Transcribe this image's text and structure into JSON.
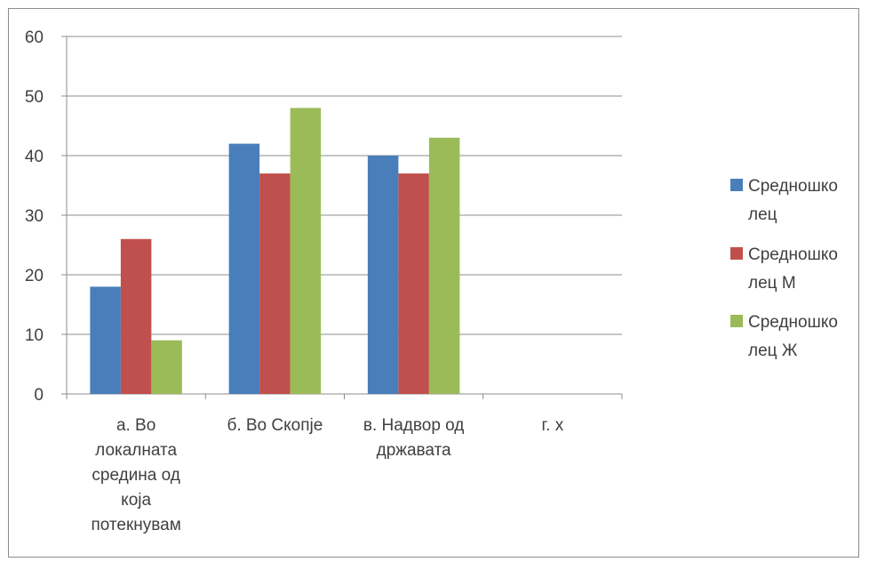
{
  "chart_data": {
    "type": "bar",
    "title": "",
    "xlabel": "",
    "ylabel": "",
    "ylim": [
      0,
      60
    ],
    "yticks": [
      0,
      10,
      20,
      30,
      40,
      50,
      60
    ],
    "grid": true,
    "legend_position": "right",
    "categories": [
      [
        "а. Во",
        "локалната",
        "средина од",
        "која",
        "потекнувам"
      ],
      [
        "б. Во Скопје"
      ],
      [
        "в. Надвор од",
        "државата"
      ],
      [
        "г. х"
      ]
    ],
    "series": [
      {
        "name": [
          "Средношко",
          "лец"
        ],
        "color": "#4a7ebb",
        "values": [
          18,
          42,
          40,
          0
        ]
      },
      {
        "name": [
          "Средношко",
          "лец М"
        ],
        "color": "#c0504d",
        "values": [
          26,
          37,
          37,
          0
        ]
      },
      {
        "name": [
          "Средношко",
          "лец Ж"
        ],
        "color": "#9bbb59",
        "values": [
          9,
          48,
          43,
          0
        ]
      }
    ]
  }
}
